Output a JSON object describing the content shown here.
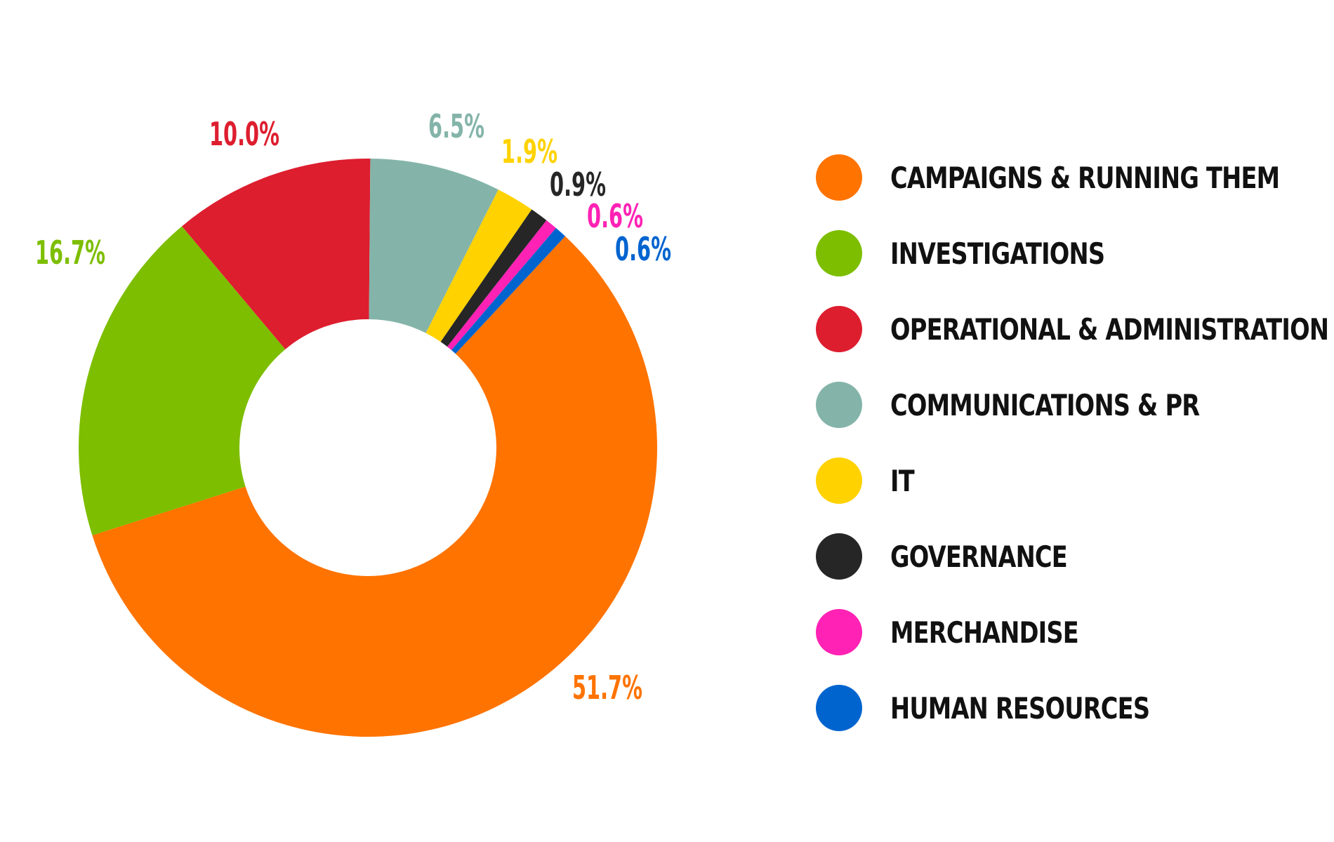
{
  "chart_data": {
    "type": "pie",
    "donut": true,
    "categories": [
      "CAMPAIGNS & RUNNING THEM",
      "INVESTIGATIONS",
      "OPERATIONAL & ADMINISTRATION",
      "COMMUNICATIONS & PR",
      "IT",
      "GOVERNANCE",
      "MERCHANDISE",
      "HUMAN RESOURCES"
    ],
    "values": [
      51.7,
      16.7,
      10.0,
      6.5,
      1.9,
      0.9,
      0.6,
      0.6
    ],
    "labels": [
      "51.7%",
      "16.7%",
      "10.0%",
      "6.5%",
      "1.9%",
      "0.9%",
      "0.6%",
      "0.6%"
    ],
    "colors": [
      "#FF7300",
      "#7DBE00",
      "#DD1E2F",
      "#84B4A9",
      "#FFD200",
      "#262626",
      "#FF22B4",
      "#0064CF"
    ],
    "legend_position": "right"
  }
}
